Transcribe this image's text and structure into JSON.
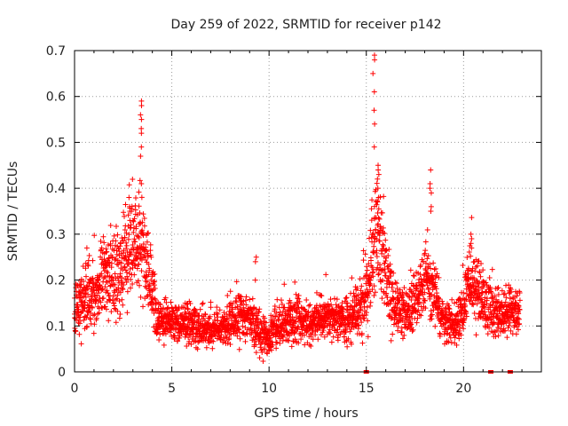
{
  "chart_data": {
    "type": "scatter",
    "title": "Day 259 of 2022, SRMTID for receiver p142",
    "xlabel": "GPS time / hours",
    "ylabel": "SRMTID / TECUs",
    "xlim": [
      0,
      24
    ],
    "ylim": [
      0,
      0.7
    ],
    "xticks": [
      0,
      5,
      10,
      15,
      20
    ],
    "yticks": [
      0,
      0.1,
      0.2,
      0.3,
      0.4,
      0.5,
      0.6,
      0.7
    ],
    "xtick_labels": [
      "0",
      "5",
      "10",
      "15",
      "20"
    ],
    "ytick_labels": [
      "0",
      "0.1",
      "0.2",
      "0.3",
      "0.4",
      "0.5",
      "0.6",
      "0.7"
    ],
    "grid": true,
    "marker": "+",
    "color": "#ff0000",
    "x_data_range": [
      0,
      22.9
    ],
    "zero_points_x": [
      15.0,
      21.4,
      22.4
    ],
    "envelope": [
      {
        "x": 0.0,
        "median": 0.14,
        "spread": 0.06
      },
      {
        "x": 0.5,
        "median": 0.17,
        "spread": 0.07
      },
      {
        "x": 1.0,
        "median": 0.15,
        "spread": 0.06
      },
      {
        "x": 1.5,
        "median": 0.22,
        "spread": 0.08
      },
      {
        "x": 2.0,
        "median": 0.2,
        "spread": 0.08
      },
      {
        "x": 2.5,
        "median": 0.24,
        "spread": 0.09
      },
      {
        "x": 3.0,
        "median": 0.28,
        "spread": 0.1
      },
      {
        "x": 3.5,
        "median": 0.29,
        "spread": 0.1
      },
      {
        "x": 4.0,
        "median": 0.18,
        "spread": 0.07
      },
      {
        "x": 4.2,
        "median": 0.11,
        "spread": 0.04
      },
      {
        "x": 5.0,
        "median": 0.11,
        "spread": 0.04
      },
      {
        "x": 6.0,
        "median": 0.1,
        "spread": 0.035
      },
      {
        "x": 7.0,
        "median": 0.09,
        "spread": 0.035
      },
      {
        "x": 8.0,
        "median": 0.1,
        "spread": 0.04
      },
      {
        "x": 8.5,
        "median": 0.13,
        "spread": 0.05
      },
      {
        "x": 9.0,
        "median": 0.12,
        "spread": 0.05
      },
      {
        "x": 9.5,
        "median": 0.08,
        "spread": 0.04
      },
      {
        "x": 10.0,
        "median": 0.08,
        "spread": 0.04
      },
      {
        "x": 10.5,
        "median": 0.1,
        "spread": 0.04
      },
      {
        "x": 11.0,
        "median": 0.11,
        "spread": 0.045
      },
      {
        "x": 12.0,
        "median": 0.11,
        "spread": 0.045
      },
      {
        "x": 13.0,
        "median": 0.12,
        "spread": 0.04
      },
      {
        "x": 14.0,
        "median": 0.11,
        "spread": 0.04
      },
      {
        "x": 14.8,
        "median": 0.13,
        "spread": 0.05
      },
      {
        "x": 15.2,
        "median": 0.22,
        "spread": 0.09
      },
      {
        "x": 15.5,
        "median": 0.3,
        "spread": 0.11
      },
      {
        "x": 16.0,
        "median": 0.2,
        "spread": 0.08
      },
      {
        "x": 16.5,
        "median": 0.13,
        "spread": 0.045
      },
      {
        "x": 17.0,
        "median": 0.13,
        "spread": 0.045
      },
      {
        "x": 17.5,
        "median": 0.15,
        "spread": 0.05
      },
      {
        "x": 18.0,
        "median": 0.2,
        "spread": 0.07
      },
      {
        "x": 18.5,
        "median": 0.17,
        "spread": 0.06
      },
      {
        "x": 19.0,
        "median": 0.11,
        "spread": 0.04
      },
      {
        "x": 19.5,
        "median": 0.1,
        "spread": 0.04
      },
      {
        "x": 20.0,
        "median": 0.13,
        "spread": 0.05
      },
      {
        "x": 20.3,
        "median": 0.22,
        "spread": 0.07
      },
      {
        "x": 20.8,
        "median": 0.17,
        "spread": 0.06
      },
      {
        "x": 21.5,
        "median": 0.13,
        "spread": 0.045
      },
      {
        "x": 22.5,
        "median": 0.13,
        "spread": 0.045
      },
      {
        "x": 22.9,
        "median": 0.14,
        "spread": 0.045
      }
    ],
    "spikes": [
      {
        "x": 3.4,
        "values": [
          0.59,
          0.58,
          0.56,
          0.55,
          0.53,
          0.52,
          0.49,
          0.47,
          0.41
        ]
      },
      {
        "x": 15.4,
        "values": [
          0.69,
          0.68,
          0.65,
          0.61,
          0.57,
          0.54,
          0.49
        ]
      },
      {
        "x": 15.6,
        "values": [
          0.45,
          0.44,
          0.43,
          0.42,
          0.4,
          0.38,
          0.37
        ]
      },
      {
        "x": 18.3,
        "values": [
          0.44,
          0.41,
          0.4,
          0.39,
          0.36,
          0.35
        ]
      },
      {
        "x": 9.3,
        "values": [
          0.25,
          0.24,
          0.2
        ]
      },
      {
        "x": 2.8,
        "values": [
          0.38,
          0.36,
          0.35,
          0.33
        ]
      },
      {
        "x": 20.4,
        "values": [
          0.3,
          0.29,
          0.28,
          0.27
        ]
      }
    ]
  }
}
